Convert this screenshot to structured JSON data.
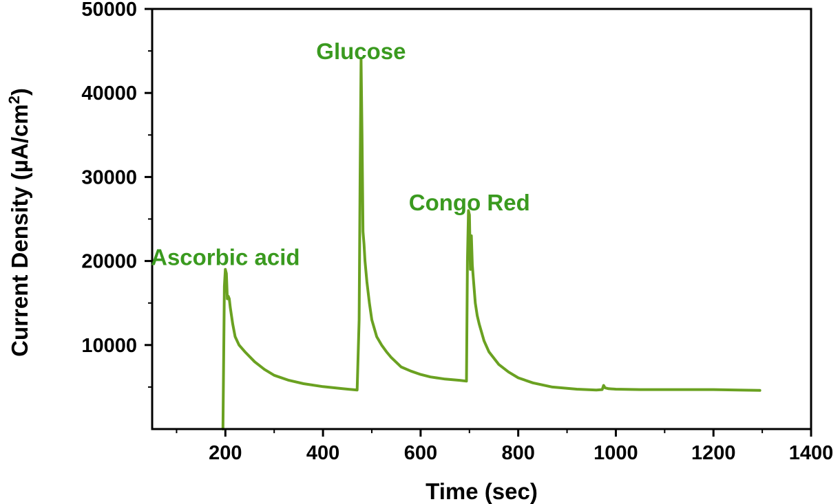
{
  "chart_data": {
    "type": "line",
    "title": "",
    "xlabel": "Time (sec)",
    "ylabel_parts": {
      "main": "Current Density (µA/cm",
      "sup": "2",
      "end": ")"
    },
    "xlim": [
      50,
      1400
    ],
    "ylim": [
      0,
      50000
    ],
    "x_ticks": [
      200,
      400,
      600,
      800,
      1000,
      1200,
      1400
    ],
    "y_ticks": [
      10000,
      20000,
      30000,
      40000,
      50000
    ],
    "grid": false,
    "line_color": "#6aa121",
    "annotation_color": "#3a9a1f",
    "annotations": [
      {
        "text": "Ascorbic acid",
        "x": 200,
        "y": 20500
      },
      {
        "text": "Glucose",
        "x": 478,
        "y": 45000
      },
      {
        "text": "Congo Red",
        "x": 700,
        "y": 27000
      }
    ],
    "series": [
      {
        "x": [
          195,
          198,
          200,
          202,
          204,
          206,
          208,
          210,
          215,
          220,
          228,
          240,
          260,
          280,
          300,
          330,
          360,
          400,
          440,
          470,
          474,
          476,
          478,
          480,
          482,
          484,
          486,
          490,
          495,
          500,
          510,
          520,
          530,
          540,
          560,
          580,
          600,
          620,
          650,
          680,
          694,
          696,
          698,
          700,
          702,
          704,
          706,
          708,
          712,
          716,
          720,
          730,
          740,
          760,
          780,
          800,
          830,
          870,
          920,
          960,
          972,
          975,
          978,
          985,
          1000,
          1050,
          1100,
          1150,
          1200,
          1250,
          1295
        ],
        "y": [
          0,
          17000,
          19000,
          18500,
          15500,
          15800,
          15500,
          14500,
          12500,
          11000,
          10000,
          9200,
          8000,
          7100,
          6400,
          5800,
          5400,
          5050,
          4800,
          4650,
          13000,
          30000,
          44000,
          35000,
          23500,
          22000,
          20000,
          17500,
          15000,
          13000,
          11000,
          10000,
          9200,
          8500,
          7400,
          6900,
          6500,
          6200,
          5950,
          5800,
          5700,
          20000,
          26000,
          25500,
          19000,
          23000,
          19500,
          18000,
          15000,
          13500,
          12500,
          10500,
          9200,
          7700,
          6800,
          6100,
          5500,
          5000,
          4750,
          4650,
          4700,
          5200,
          4900,
          4800,
          4750,
          4700,
          4700,
          4700,
          4700,
          4650,
          4600
        ]
      }
    ]
  }
}
